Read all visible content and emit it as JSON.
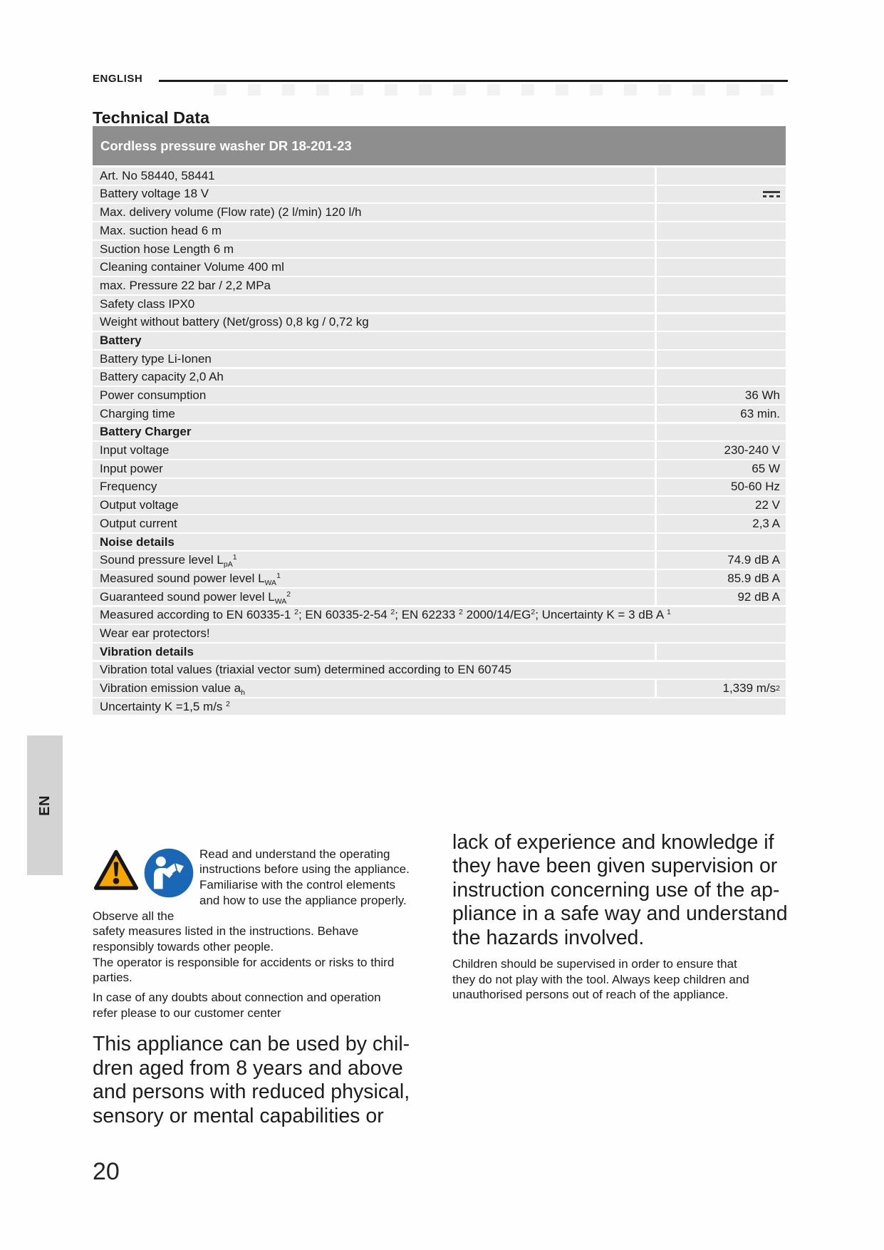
{
  "page": {
    "language_label": "ENGLISH",
    "title": "Technical Data",
    "side_tab_label": "EN",
    "page_number": "20"
  },
  "colors": {
    "table_header_bg": "#8e8e8e",
    "row_bg": "#e9e9e9",
    "tab_bg": "#d3d3d3",
    "warning_orange": "#f5a603",
    "manual_icon_blue": "#1a67b5"
  },
  "table": {
    "header": "Cordless pressure washer DR 18-201-23",
    "rows": [
      {
        "label": "Art. No 58440, 58441",
        "value": ""
      },
      {
        "label": "Battery voltage 18 V",
        "value": "",
        "icon": "dc"
      },
      {
        "label": "Max. delivery volume (Flow rate) (2 l/min)  120 l/h",
        "value": ""
      },
      {
        "label": "Max. suction head 6 m",
        "value": ""
      },
      {
        "label": "Suction hose Length 6 m",
        "value": ""
      },
      {
        "label": "Cleaning container Volume 400 ml",
        "value": ""
      },
      {
        "label": "max. Pressure 22 bar / 2,2 MPa",
        "value": ""
      },
      {
        "label": "Safety class IPX0",
        "value": ""
      },
      {
        "label": "Weight without battery (Net/gross) 0,8 kg / 0,72 kg",
        "value": ""
      },
      {
        "label": "Battery",
        "value": "",
        "bold": true
      },
      {
        "label": "Battery type Li-Ionen",
        "value": ""
      },
      {
        "label": "Battery capacity 2,0 Ah",
        "value": ""
      },
      {
        "label": "Power consumption",
        "value": "36 Wh"
      },
      {
        "label": "Charging time",
        "value": "63 min."
      },
      {
        "label": "Battery Charger",
        "value": "",
        "bold": true
      },
      {
        "label": "Input voltage",
        "value": "230-240 V"
      },
      {
        "label": "Input power",
        "value": "65 W"
      },
      {
        "label": "Frequency",
        "value": "50-60 Hz"
      },
      {
        "label": "Output voltage",
        "value": "22 V"
      },
      {
        "label": "Output current",
        "value": "2,3 A"
      },
      {
        "label": "Noise details",
        "value": "",
        "bold": true
      },
      {
        "label": "Sound pressure level L~pA~^1^",
        "value": "74.9 dB A"
      },
      {
        "label": "Measured sound power level L~WA~^1^",
        "value": "85.9 dB A"
      },
      {
        "label": "Guaranteed sound power level L~WA~^2^",
        "value": "92 dB A"
      },
      {
        "label": "Measured according to EN 60335-1 ^2^; EN 60335-2-54 ^2^; EN 62233 ^2^  2000/14/EG^2^; Uncertainty K = 3 dB A ^1^",
        "span": true
      },
      {
        "label": "Wear ear protectors!",
        "span": true
      },
      {
        "label": "Vibration details",
        "value": "",
        "bold": true
      },
      {
        "label": "Vibration total values (triaxial vector sum) determined according to EN 60745",
        "span": true
      },
      {
        "label": "Vibration emission value a~h~",
        "value": "1,339 m/s ^2^"
      },
      {
        "label": "Uncertainty K =1,5 m/s ^2^",
        "span": true
      }
    ]
  },
  "safety": {
    "icon_names": [
      "warning-triangle-icon",
      "read-manual-icon"
    ],
    "intro": "Read and understand the operating\ninstructions before using the appliance.\nFamiliarise with the control elements\nand how to use the appliance properly. Observe all the\nsafety measures listed in the instructions. Behave\nresponsibly towards other people.\nThe operator is responsible for accidents or risks to third\nparties.",
    "doubts": "In case of any doubts about connection and operation\nrefer please to our customer center",
    "children_left": "This appliance can be used by chil-\ndren aged from 8 years and above\nand persons with reduced physical,\nsensory or mental capabilities or",
    "children_right": "lack of experience and knowledge if\nthey have been given supervision or\ninstruction concerning use of the ap-\npliance in a safe way and understand\nthe hazards involved.",
    "children_note": "Children should be supervised in order to ensure that\nthey do not play with the tool. Always keep children and\nunauthorised persons out of reach of the appliance."
  }
}
